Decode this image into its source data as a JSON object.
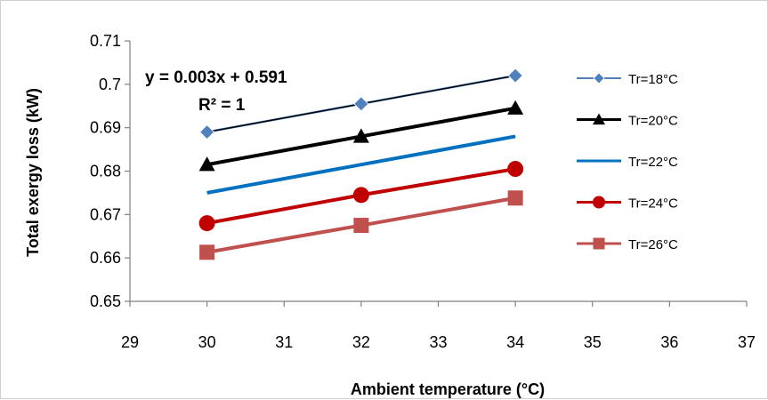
{
  "chart_data": {
    "type": "line",
    "xlabel": "Ambient temperature (°C)",
    "ylabel": "Total exergy loss (kW)",
    "xlim": [
      29,
      37
    ],
    "ylim": [
      0.65,
      0.71
    ],
    "x_ticks": [
      "29",
      "30",
      "31",
      "32",
      "33",
      "34",
      "35",
      "36",
      "37"
    ],
    "y_ticks": [
      "0.65",
      "0.66",
      "0.67",
      "0.68",
      "0.69",
      "0.7",
      "0.71"
    ],
    "grid": false,
    "legend_position": "right",
    "annotations": {
      "equation": "y = 0.003x + 0.591",
      "r_squared": "R² = 1"
    },
    "x": [
      30,
      32,
      34
    ],
    "series": [
      {
        "name": "Tr=18°C",
        "values": [
          0.689,
          0.6955,
          0.702
        ],
        "color": "#4f81bd",
        "marker": "diamond",
        "trendline": true
      },
      {
        "name": "Tr=20°C",
        "values": [
          0.6815,
          0.688,
          0.6945
        ],
        "color": "#000000",
        "marker": "triangle"
      },
      {
        "name": "Tr=22°C",
        "values": [
          0.675,
          0.6815,
          0.688
        ],
        "color": "#0070c0",
        "marker": "none"
      },
      {
        "name": "Tr=24°C",
        "values": [
          0.668,
          0.6745,
          0.6805
        ],
        "color": "#c00000",
        "marker": "circle"
      },
      {
        "name": "Tr=26°C",
        "values": [
          0.6613,
          0.6675,
          0.6738
        ],
        "color": "#c0504d",
        "marker": "square"
      }
    ]
  }
}
